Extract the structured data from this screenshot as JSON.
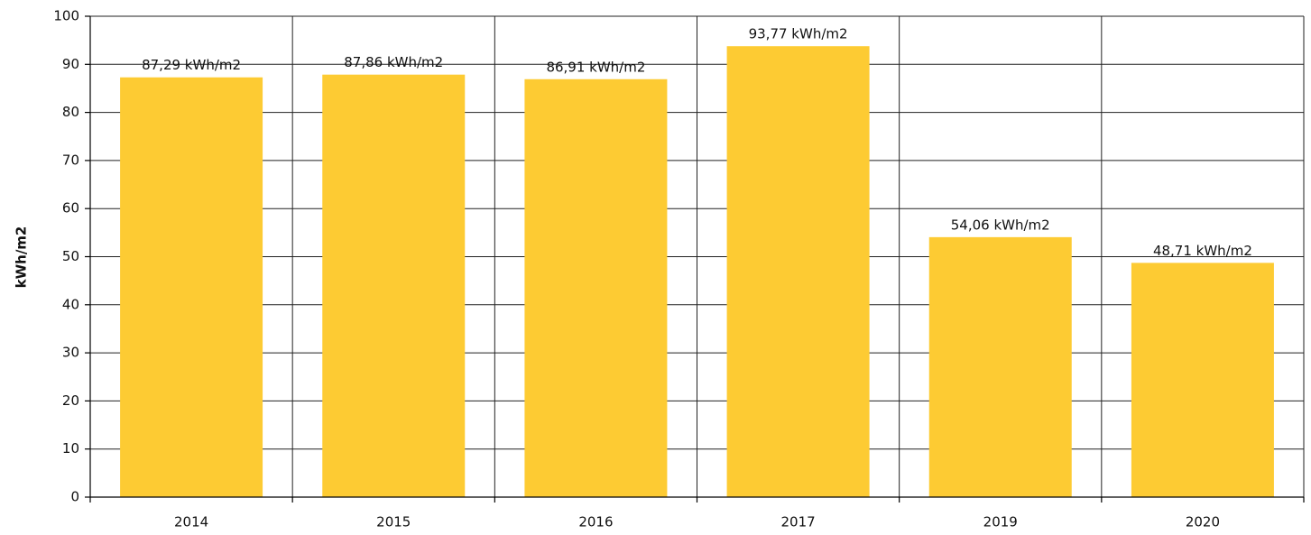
{
  "chart_data": {
    "type": "bar",
    "y_label": "kWh/m2",
    "categories": [
      "2014",
      "2015",
      "2016",
      "2017",
      "2019",
      "2020"
    ],
    "values": [
      87.29,
      87.86,
      86.91,
      93.77,
      54.06,
      48.71
    ],
    "value_labels": [
      "87,29 kWh/m2",
      "87,86 kWh/m2",
      "86,91 kWh/m2",
      "93,77 kWh/m2",
      "54,06 kWh/m2",
      "48,71 kWh/m2"
    ],
    "color": "#fdcb33",
    "ylim": [
      0,
      100
    ],
    "yticks": [
      0,
      10,
      20,
      30,
      40,
      50,
      60,
      70,
      80,
      90,
      100
    ],
    "grid": true
  }
}
